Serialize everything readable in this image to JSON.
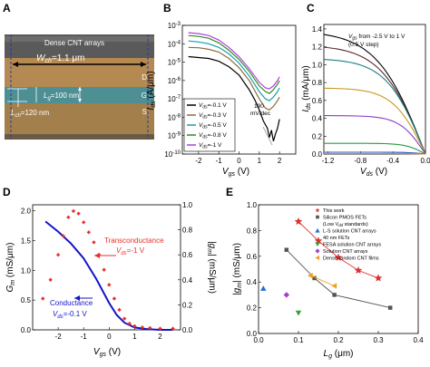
{
  "panel_letters": [
    "A",
    "B",
    "C",
    "D",
    "E"
  ],
  "panelA": {
    "top_label": "Dense CNT arrays",
    "wch_label": "W",
    "wch_sub": "ch",
    "wch_val": "=1.1 μm",
    "lg_label": "L",
    "lg_sub": "g",
    "lg_val": "=100 nm",
    "lch_label": "L",
    "lch_sub": "ch",
    "lch_val": "=120 nm",
    "D": "D",
    "G": "G",
    "S": "S",
    "colors": {
      "top": "#5a5a5a",
      "drain": "#b48a52",
      "gate": "#4e8f93",
      "source": "#a37f4c"
    }
  },
  "chart_data": [
    {
      "id": "B",
      "type": "line",
      "xlabel": "V",
      "xlabel_sub": "gs",
      "xlabel_unit": " (V)",
      "ylabel": "I",
      "ylabel_sub": "ds",
      "ylabel_unit": " (A/μm)",
      "xlim": [
        -2.8,
        2.8
      ],
      "ylim_log": [
        -10,
        -3
      ],
      "y_log": true,
      "xticks": [
        -2,
        -1,
        0,
        1,
        2
      ],
      "ytick_base": "10",
      "ytick_exp": [
        "-10",
        "-9",
        "-8",
        "-7",
        "-6",
        "-5",
        "-4",
        "-3"
      ],
      "annotation": [
        "190",
        "mV/dec"
      ],
      "legend_position": "bottom-left",
      "series": [
        {
          "name_pre": "V",
          "name_sub": "ds",
          "name_post": "=-0.1 V",
          "color": "#000000",
          "x": [
            -2.5,
            -2.0,
            -1.5,
            -1.0,
            -0.5,
            0.0,
            0.5,
            0.8,
            1.0,
            1.2,
            1.4,
            1.5,
            1.6,
            1.7,
            1.8,
            1.9,
            2.0
          ],
          "logy": [
            -4.7,
            -4.75,
            -4.8,
            -4.95,
            -5.25,
            -5.7,
            -6.5,
            -7.1,
            -7.6,
            -8.2,
            -8.6,
            -9.1,
            -8.7,
            -9.3,
            -8.9,
            -8.6,
            -8.1
          ]
        },
        {
          "name_pre": "V",
          "name_sub": "ds",
          "name_post": "=-0.3 V",
          "color": "#8c6d3f",
          "x": [
            -2.5,
            -2.0,
            -1.5,
            -1.0,
            -0.5,
            0.0,
            0.5,
            1.0,
            1.3,
            1.5,
            1.7,
            1.9,
            2.0
          ],
          "logy": [
            -4.2,
            -4.22,
            -4.3,
            -4.45,
            -4.8,
            -5.3,
            -6.0,
            -7.0,
            -7.5,
            -7.6,
            -7.4,
            -7.1,
            -6.9
          ]
        },
        {
          "name_pre": "V",
          "name_sub": "ds",
          "name_post": "=-0.5 V",
          "color": "#1a9fa3",
          "x": [
            -2.5,
            -2.0,
            -1.5,
            -1.0,
            -0.5,
            0.0,
            0.5,
            1.0,
            1.3,
            1.5,
            1.7,
            1.9,
            2.0
          ],
          "logy": [
            -3.85,
            -3.9,
            -4.0,
            -4.2,
            -4.55,
            -5.05,
            -5.75,
            -6.6,
            -7.0,
            -7.1,
            -6.9,
            -6.6,
            -6.4
          ]
        },
        {
          "name_pre": "V",
          "name_sub": "ds",
          "name_post": "=-0.8 V",
          "color": "#2e8b2e",
          "x": [
            -2.5,
            -2.0,
            -1.5,
            -1.0,
            -0.5,
            0.0,
            0.5,
            1.0,
            1.3,
            1.5,
            1.7,
            1.9,
            2.0
          ],
          "logy": [
            -3.55,
            -3.6,
            -3.7,
            -3.95,
            -4.35,
            -4.85,
            -5.5,
            -6.3,
            -6.6,
            -6.7,
            -6.5,
            -6.2,
            -6.0
          ]
        },
        {
          "name_pre": "V",
          "name_sub": "ds",
          "name_post": "=-1 V",
          "color": "#b040d8",
          "x": [
            -2.5,
            -2.0,
            -1.5,
            -1.0,
            -0.5,
            0.0,
            0.5,
            1.0,
            1.3,
            1.5,
            1.7,
            1.9,
            2.0
          ],
          "logy": [
            -3.4,
            -3.45,
            -3.55,
            -3.8,
            -4.2,
            -4.7,
            -5.35,
            -6.1,
            -6.4,
            -6.45,
            -6.3,
            -6.0,
            -5.8
          ]
        }
      ]
    },
    {
      "id": "C",
      "type": "line",
      "xlabel": "V",
      "xlabel_sub": "ds",
      "xlabel_unit": " (V)",
      "ylabel": "I",
      "ylabel_sub": "ds",
      "ylabel_unit": " (mA/μm)",
      "xlim": [
        -1.25,
        0.0
      ],
      "ylim": [
        0,
        1.45
      ],
      "xticks": [
        -1.2,
        -0.8,
        -0.4,
        0.0
      ],
      "yticks": [
        0.0,
        0.2,
        0.4,
        0.6,
        0.8,
        1.0,
        1.2,
        1.4
      ],
      "annotation": [
        "V",
        "gs",
        " from -2.5 V to 1 V",
        "(0.5 V step)"
      ],
      "series": [
        {
          "name": "-2.5",
          "color": "#000000",
          "isat": 1.38,
          "k": 1.0
        },
        {
          "name": "-2.0",
          "color": "#5a2a2a",
          "isat": 1.22,
          "k": 1.1
        },
        {
          "name": "-1.5",
          "color": "#1a7f86",
          "isat": 1.07,
          "k": 1.25
        },
        {
          "name": "-1.0",
          "color": "#c79a1b",
          "isat": 0.74,
          "k": 1.5
        },
        {
          "name": "-0.5",
          "color": "#8a3bc9",
          "isat": 0.43,
          "k": 1.9
        },
        {
          "name": "0.0",
          "color": "#2a9a3a",
          "isat": 0.12,
          "k": 2.5
        },
        {
          "name": "0.5",
          "color": "#2a52b8",
          "isat": 0.02,
          "k": 3.0
        },
        {
          "name": "1.0",
          "color": "#d08a3a",
          "isat": 0.005,
          "k": 3.0
        }
      ]
    },
    {
      "id": "D",
      "type": "scatter",
      "xlabel": "V",
      "xlabel_sub": "gs",
      "xlabel_unit": " (V)",
      "ylabel_left": "G",
      "ylabel_left_sub": "m",
      "ylabel_left_unit": " (mS/μm)",
      "ylabel_right": "|g",
      "ylabel_right_sub": "m",
      "ylabel_right_unit": "| (mS/μm)",
      "xlim": [
        -3.0,
        2.8
      ],
      "ylim_left": [
        0,
        2.1
      ],
      "ylim_right": [
        0,
        1.0
      ],
      "xticks": [
        -2,
        -1,
        0,
        1,
        2
      ],
      "yticks_left": [
        0.0,
        0.5,
        1.0,
        1.5,
        2.0
      ],
      "yticks_right": [
        0.0,
        0.2,
        0.4,
        0.6,
        0.8,
        1.0
      ],
      "transconductance_label": "Transconductance",
      "transconductance_vds": [
        "V",
        "ds",
        "=-1 V"
      ],
      "conductance_label": "Conductance",
      "conductance_vds": [
        "V",
        "ds",
        "=-0.1 V"
      ],
      "tc_color": "#e8312a",
      "c_color": "#1414c8",
      "conductance": {
        "x": [
          -2.5,
          -2.0,
          -1.5,
          -1.0,
          -0.5,
          0.0,
          0.3,
          0.6,
          1.0,
          1.5,
          2.0,
          2.5
        ],
        "y": [
          1.82,
          1.65,
          1.45,
          1.2,
          0.85,
          0.45,
          0.25,
          0.12,
          0.04,
          0.01,
          0.0,
          0.0
        ]
      },
      "transconductance": {
        "x": [
          -2.6,
          -2.3,
          -2.0,
          -1.8,
          -1.6,
          -1.4,
          -1.2,
          -1.0,
          -0.8,
          -0.6,
          -0.4,
          -0.2,
          0.0,
          0.2,
          0.4,
          0.6,
          0.8,
          1.0,
          1.3,
          1.6,
          2.0,
          2.5
        ],
        "y": [
          0.25,
          0.4,
          0.6,
          0.75,
          0.9,
          0.95,
          0.93,
          0.86,
          0.78,
          0.7,
          0.6,
          0.48,
          0.36,
          0.25,
          0.16,
          0.09,
          0.05,
          0.03,
          0.02,
          0.015,
          0.01,
          0.01
        ]
      }
    },
    {
      "id": "E",
      "type": "scatter",
      "xlabel": "L",
      "xlabel_sub": "g",
      "xlabel_unit": " (μm)",
      "ylabel": "|g",
      "ylabel_sub": "m",
      "ylabel_unit": "| (mS/μm)",
      "xlim": [
        0.0,
        0.4
      ],
      "ylim": [
        0.0,
        1.0
      ],
      "xticks": [
        0.0,
        0.1,
        0.2,
        0.3,
        0.4
      ],
      "yticks": [
        0.0,
        0.2,
        0.4,
        0.6,
        0.8,
        1.0
      ],
      "legend_position": "top-right",
      "series": [
        {
          "name": "This work",
          "marker": "star",
          "color": "#e03030",
          "line": true,
          "x": [
            0.1,
            0.15,
            0.2,
            0.25,
            0.3
          ],
          "y": [
            0.87,
            0.72,
            0.59,
            0.49,
            0.43
          ]
        },
        {
          "name": "Silicon PMOS FETs",
          "name2": "(Low V",
          "name2_sub": "dd",
          "name2_post": " standards)",
          "marker": "square",
          "color": "#555555",
          "line": true,
          "x": [
            0.07,
            0.14,
            0.19,
            0.33
          ],
          "y": [
            0.65,
            0.43,
            0.3,
            0.2
          ]
        },
        {
          "name": "L-S solution CNT arrays",
          "name2": "40 nm FETs",
          "marker": "triangle",
          "color": "#1f6fd0",
          "line": false,
          "x": [
            0.012
          ],
          "y": [
            0.35
          ]
        },
        {
          "name": "FESA solution CNT arrays",
          "marker": "triangle-down",
          "color": "#2ea52e",
          "line": false,
          "x": [
            0.1
          ],
          "y": [
            0.16
          ]
        },
        {
          "name": "Solution CNT arrays",
          "marker": "diamond",
          "color": "#a040d0",
          "line": false,
          "x": [
            0.07
          ],
          "y": [
            0.3
          ]
        },
        {
          "name": "Dense random CNT films",
          "marker": "triangle-left",
          "color": "#f0a020",
          "line": true,
          "x": [
            0.13,
            0.19
          ],
          "y": [
            0.45,
            0.37
          ]
        }
      ]
    }
  ]
}
